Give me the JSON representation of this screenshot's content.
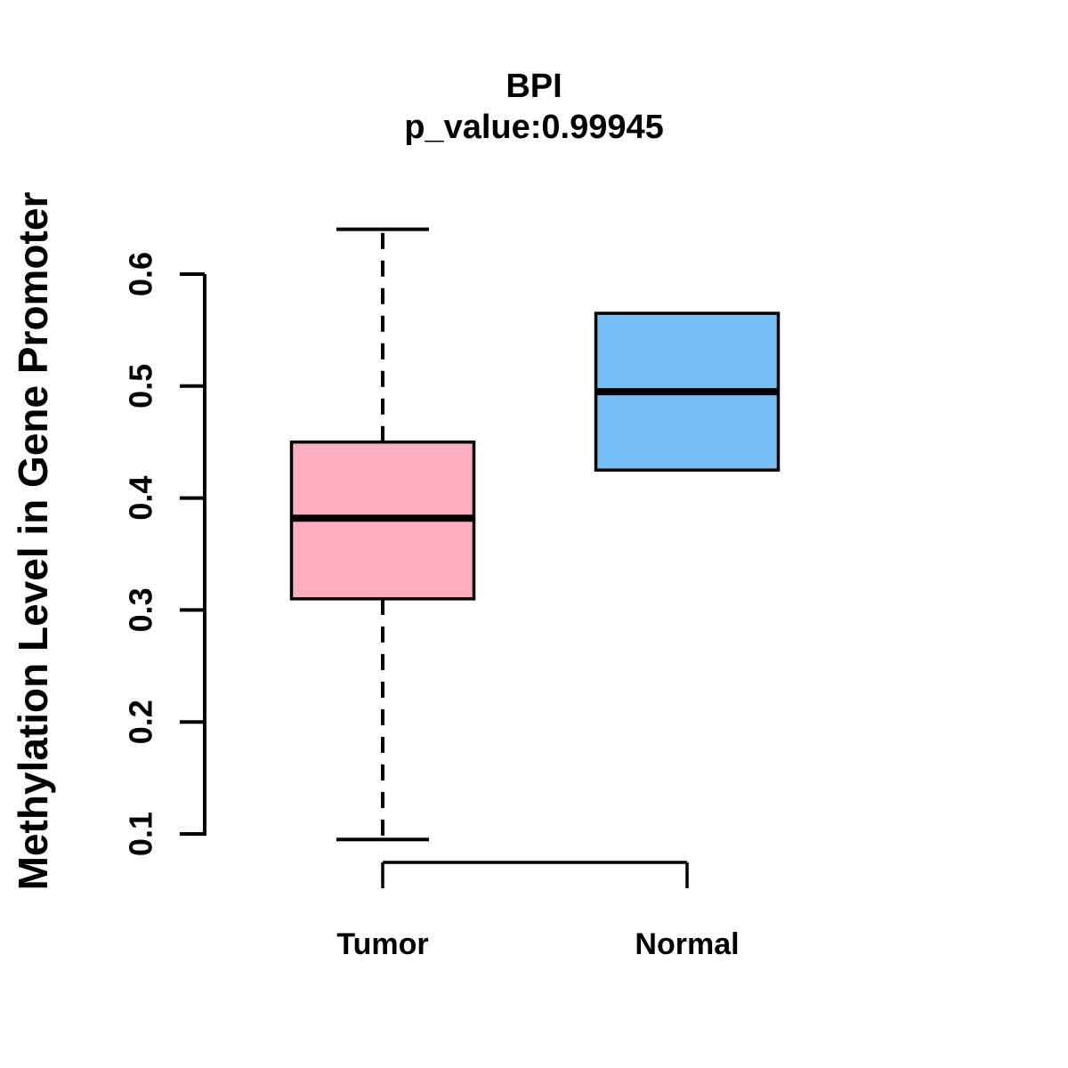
{
  "figure": {
    "title": "BPI",
    "subtitle": "p_value:0.99945",
    "p_value": "0.99945",
    "ylabel": "Methylation Level in Gene Promoter",
    "background_color": "#ffffff",
    "line_color": "#000000"
  },
  "chart_data": {
    "type": "boxplot",
    "title": "BPI",
    "subtitle": "p_value:0.99945",
    "ylabel": "Methylation Level in Gene Promoter",
    "xlabel": "",
    "categories": [
      "Tumor",
      "Normal"
    ],
    "ytick_labels": [
      "0.1",
      "0.2",
      "0.3",
      "0.4",
      "0.5",
      "0.6"
    ],
    "yticks": [
      0.1,
      0.2,
      0.3,
      0.4,
      0.5,
      0.6
    ],
    "ylim": [
      0.095,
      0.64
    ],
    "grid": false,
    "legend": "none",
    "whisker_style": "dashed",
    "series": [
      {
        "name": "Tumor",
        "color": "#FCAEC1",
        "border_color": "#000000",
        "whisker_low": 0.095,
        "q1": 0.31,
        "median": 0.382,
        "q3": 0.45,
        "whisker_high": 0.64
      },
      {
        "name": "Normal",
        "color": "#76BFF7",
        "border_color": "#000000",
        "whisker_low": 0.425,
        "q1": 0.425,
        "median": 0.495,
        "q3": 0.565,
        "whisker_high": 0.565
      }
    ]
  }
}
